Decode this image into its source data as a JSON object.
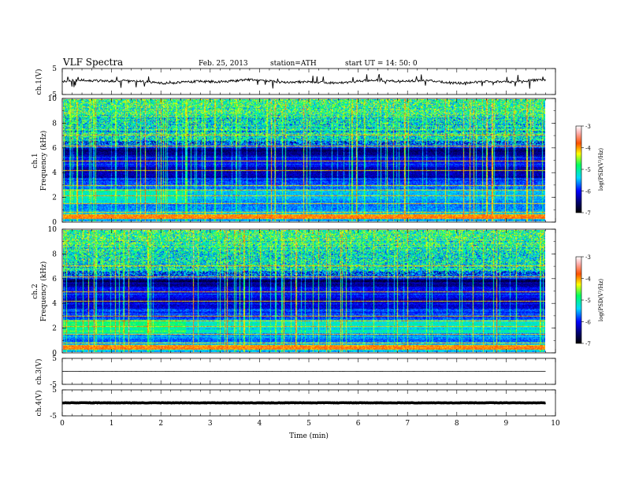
{
  "header": {
    "title": "VLF  Spectra",
    "date": "Feb. 25, 2013",
    "station": "station=ATH",
    "start_time": "start  UT  =    14: 50: 0"
  },
  "colors": {
    "background": "#ffffff",
    "trace": "#000000",
    "colormap": [
      "#000000",
      "#00006e",
      "#0000ff",
      "#00d8ff",
      "#00ff60",
      "#ffff00",
      "#ff5000",
      "#ffb0b0",
      "#ffffff"
    ]
  },
  "chart_data": [
    {
      "name": "ch1_waveform",
      "type": "line",
      "ylabel": "ch.1(V)",
      "ylim": [
        -5,
        5
      ],
      "yticks": [
        "5",
        "-5"
      ],
      "x_range": [
        0,
        9.8
      ],
      "baseline": 0
    },
    {
      "name": "ch1_spectrogram",
      "type": "heatmap",
      "ylabel": "ch.1\nFrequency  (kHz)",
      "ylabel_lines": [
        "ch.1",
        "Frequency  (kHz)"
      ],
      "ylim": [
        0,
        10
      ],
      "yticks": [
        "0",
        "2",
        "4",
        "6",
        "8",
        "10"
      ],
      "x_range": [
        0,
        9.8
      ],
      "colorbar": {
        "label": "log(PSD(V²/Hz)",
        "range": [
          -7,
          -3
        ],
        "ticks": [
          "-3",
          "-4",
          "-5",
          "-6",
          "-7"
        ]
      }
    },
    {
      "name": "ch2_spectrogram",
      "type": "heatmap",
      "ylabel": "ch.2\nFrequency  (kHz)",
      "ylabel_lines": [
        "ch.2",
        "Frequency  (kHz)"
      ],
      "ylim": [
        0,
        10
      ],
      "yticks": [
        "0",
        "2",
        "4",
        "6",
        "8",
        "10"
      ],
      "x_range": [
        0,
        9.8
      ],
      "colorbar": {
        "label": "log(PSD(V²/Hz)",
        "range": [
          -7,
          -3
        ],
        "ticks": [
          "-3",
          "-4",
          "-5",
          "-6",
          "-7"
        ]
      }
    },
    {
      "name": "ch3_waveform",
      "type": "line",
      "ylabel": "ch.3(V)",
      "ylim": [
        -5,
        5
      ],
      "yticks": [
        "5",
        "-5"
      ],
      "x_range": [
        0,
        9.8
      ],
      "baseline": 0
    },
    {
      "name": "ch4_waveform",
      "type": "line",
      "ylabel": "ch.4(V)",
      "ylim": [
        -5,
        5
      ],
      "yticks": [
        "5",
        "-5"
      ],
      "x_range": [
        0,
        9.8
      ],
      "baseline": 0
    }
  ],
  "xaxis": {
    "label": "Time  (min)",
    "range": [
      0,
      10
    ],
    "ticks": [
      "0",
      "1",
      "2",
      "3",
      "4",
      "5",
      "6",
      "7",
      "8",
      "9",
      "10"
    ]
  }
}
